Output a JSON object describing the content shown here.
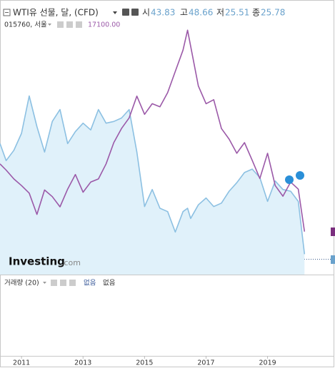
{
  "chart_data": {
    "type": "line",
    "ohlc": [
      {
        "label": "시",
        "value": 43.83
      },
      {
        "label": "고",
        "value": 48.66
      },
      {
        "label": "저",
        "value": 25.51
      },
      {
        "label": "종",
        "value": 25.78
      }
    ],
    "overlay_value": "17100.00",
    "volume_label": "거래량 (20)",
    "volume_values": [
      "없음",
      "없음"
    ],
    "brand": "Investing",
    "brand_suffix": ".com",
    "xlim": [
      2010.3,
      2021.1
    ],
    "xticks": [
      2011,
      2013,
      2015,
      2017,
      2019
    ],
    "ylim": [
      8,
      161
    ],
    "y2lim": [
      7400,
      66200
    ],
    "x": [
      2010.3,
      2010.5,
      2010.75,
      2011.0,
      2011.25,
      2011.5,
      2011.75,
      2012.0,
      2012.25,
      2012.5,
      2012.75,
      2013.0,
      2013.25,
      2013.5,
      2013.75,
      2014.0,
      2014.25,
      2014.5,
      2014.75,
      2015.0,
      2015.25,
      2015.5,
      2015.75,
      2016.0,
      2016.25,
      2016.4,
      2016.5,
      2016.75,
      2017.0,
      2017.25,
      2017.5,
      2017.75,
      2018.0,
      2018.25,
      2018.5,
      2018.75,
      2019.0,
      2019.25,
      2019.5,
      2019.75,
      2020.0,
      2020.2
    ],
    "series": [
      {
        "name": "WTI유 선물, 달, (CFD)",
        "color": "#8cc0e2",
        "fill": "#e0f1fa",
        "values": [
          85,
          75,
          81,
          91,
          113,
          95,
          80,
          98,
          105,
          85,
          92,
          97,
          93,
          105,
          97,
          98,
          100,
          105,
          80,
          48,
          58,
          47,
          45,
          33,
          45,
          47,
          41,
          49,
          53,
          48,
          50,
          57,
          62,
          68,
          70,
          65,
          51,
          63,
          58,
          57,
          51,
          20
        ]
      },
      {
        "name": "015760, 서울",
        "color": "#9b59a8",
        "axis": "y2",
        "values": [
          32400,
          31000,
          29000,
          27500,
          25800,
          21000,
          26500,
          25000,
          22700,
          26700,
          30000,
          26000,
          28300,
          29000,
          32400,
          37200,
          40400,
          42800,
          47700,
          43600,
          46000,
          45300,
          48500,
          53300,
          58100,
          62600,
          59000,
          50000,
          46000,
          46900,
          40400,
          38000,
          34800,
          37200,
          33200,
          29100,
          34800,
          27500,
          25100,
          28300,
          26700,
          17100
        ]
      }
    ]
  }
}
